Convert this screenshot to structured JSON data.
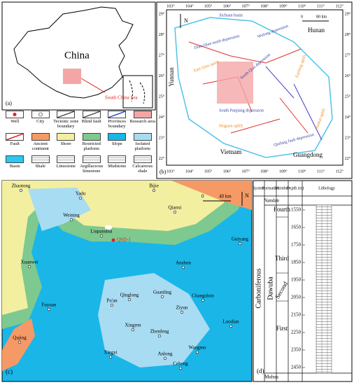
{
  "panel_a": {
    "label": "(a)",
    "country": "China",
    "sea": "South China Sea"
  },
  "panel_b": {
    "label": "(b)",
    "north": "N",
    "scale": [
      "0",
      "80 km"
    ],
    "longitudes": [
      "103°",
      "104°",
      "105°",
      "106°",
      "107°",
      "108°",
      "109°",
      "110°",
      "111°",
      "112°"
    ],
    "latitudes": [
      "29°",
      "28°",
      "27°",
      "26°",
      "25°",
      "24°",
      "23°",
      "22°"
    ],
    "regions": [
      "Yunnan",
      "Hunan",
      "Vietnam",
      "Guangdong"
    ],
    "units": [
      "Sichuan basin",
      "Wulong depression",
      "Dian-Qian north depression",
      "East Qian uplift",
      "South Qian depression",
      "Xuefeng uplift",
      "South Panjiang depression",
      "Maguan uplift",
      "Yunkai uplift",
      "Qinfang fault depression"
    ]
  },
  "legend": [
    "Well",
    "City",
    "Tectonic zone boundary",
    "Blind fault",
    "Provinces boundary",
    "Research area",
    "Fault",
    "Ancient continent",
    "Shore",
    "Restricted platform",
    "Slope",
    "Isolated platform",
    "Basin",
    "Shale",
    "Limestone",
    "Argillaceous limestone",
    "Mudstone",
    "Calcareous shale"
  ],
  "panel_c": {
    "label": "(c)",
    "north": "N",
    "scale": [
      "0",
      "40 km"
    ],
    "well": "QSD-1",
    "cities": [
      "Zhaotong",
      "Yadu",
      "Bijie",
      "Qianxi",
      "Weining",
      "Liupanshui",
      "Guiyang",
      "Xuanwei",
      "Anshun",
      "Qinglong",
      "Guanling",
      "Changshun",
      "Pu'an",
      "Ziyun",
      "Fuyuan",
      "Qujing",
      "Xingren",
      "Zhenfeng",
      "Luodian",
      "Wangmo",
      "Xingyi",
      "Anlong",
      "Ceheng"
    ]
  },
  "panel_d": {
    "label": "(d)",
    "headers": [
      "System",
      "Formation",
      "Member",
      "Depth (m)",
      "Lithology"
    ],
    "system": "Carboniferous",
    "formation": "Dawuba",
    "top": "Nandan",
    "bottom": "Muhua",
    "members": [
      "Fourth",
      "Third",
      "Second",
      "First"
    ],
    "depths": [
      1550,
      1650,
      1750,
      1850,
      1950,
      2050,
      2150,
      2250,
      2350,
      2450
    ]
  }
}
